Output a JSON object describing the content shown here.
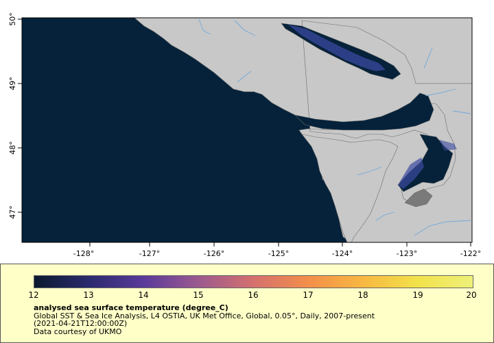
{
  "map": {
    "colors": {
      "ocean": "#05223a",
      "land": "#c8c8c8",
      "coast": "#6a6a6a",
      "rivers": "#6fa8dc",
      "warm_water": "#3a4aa0"
    },
    "lon_ticks": [
      "-128°",
      "-127°",
      "-126°",
      "-125°",
      "-124°",
      "-123°",
      "-122°"
    ],
    "lat_ticks": [
      "50°",
      "49°",
      "48°",
      "47°"
    ]
  },
  "legend": {
    "colorbar_ticks": [
      "12",
      "13",
      "14",
      "15",
      "16",
      "17",
      "18",
      "19",
      "20"
    ],
    "colorbar_gradient": [
      "#0b1a2e",
      "#2b2a6e",
      "#5a3a9a",
      "#9c5a8f",
      "#d4706e",
      "#f28f4a",
      "#f8b842",
      "#f2e24a",
      "#eef07a"
    ],
    "title": "analysed sea surface temperature (degree_C)",
    "line1": "Global SST & Sea Ice Analysis, L4 OSTIA, UK Met Office, Global, 0.05°, Daily, 2007-present",
    "line2": "(2021-04-21T12:00:00Z)",
    "line3": "Data courtesy of UKMO"
  }
}
